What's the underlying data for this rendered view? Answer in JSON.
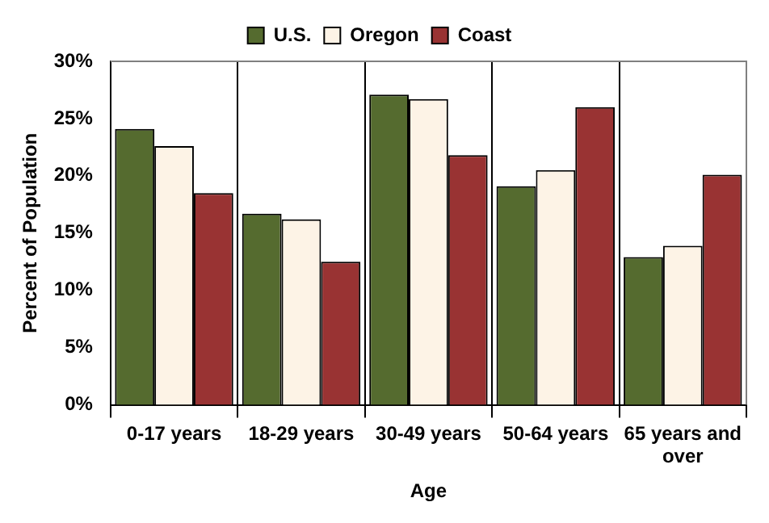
{
  "chart_data": {
    "type": "bar",
    "xlabel": "Age",
    "ylabel": "Percent of Population",
    "categories": [
      "0-17 years",
      "18-29 years",
      "30-49 years",
      "50-64 years",
      "65 years and over"
    ],
    "series": [
      {
        "name": "U.S.",
        "color": "#556b2f",
        "values": [
          24.1,
          16.7,
          27.1,
          19.1,
          12.9
        ]
      },
      {
        "name": "Oregon",
        "color": "#fdf3e6",
        "values": [
          22.6,
          16.2,
          26.7,
          20.5,
          13.9
        ]
      },
      {
        "name": "Coast",
        "color": "#993333",
        "values": [
          18.5,
          12.5,
          21.8,
          26.0,
          20.1
        ]
      }
    ],
    "ylim": [
      0,
      30
    ],
    "yticks": [
      {
        "value": 0,
        "label": "0%"
      },
      {
        "value": 5,
        "label": "5%"
      },
      {
        "value": 10,
        "label": "10%"
      },
      {
        "value": 15,
        "label": "15%"
      },
      {
        "value": 20,
        "label": "20%"
      },
      {
        "value": 25,
        "label": "25%"
      },
      {
        "value": 30,
        "label": "30%"
      }
    ],
    "grid": "x",
    "legend": "top"
  }
}
